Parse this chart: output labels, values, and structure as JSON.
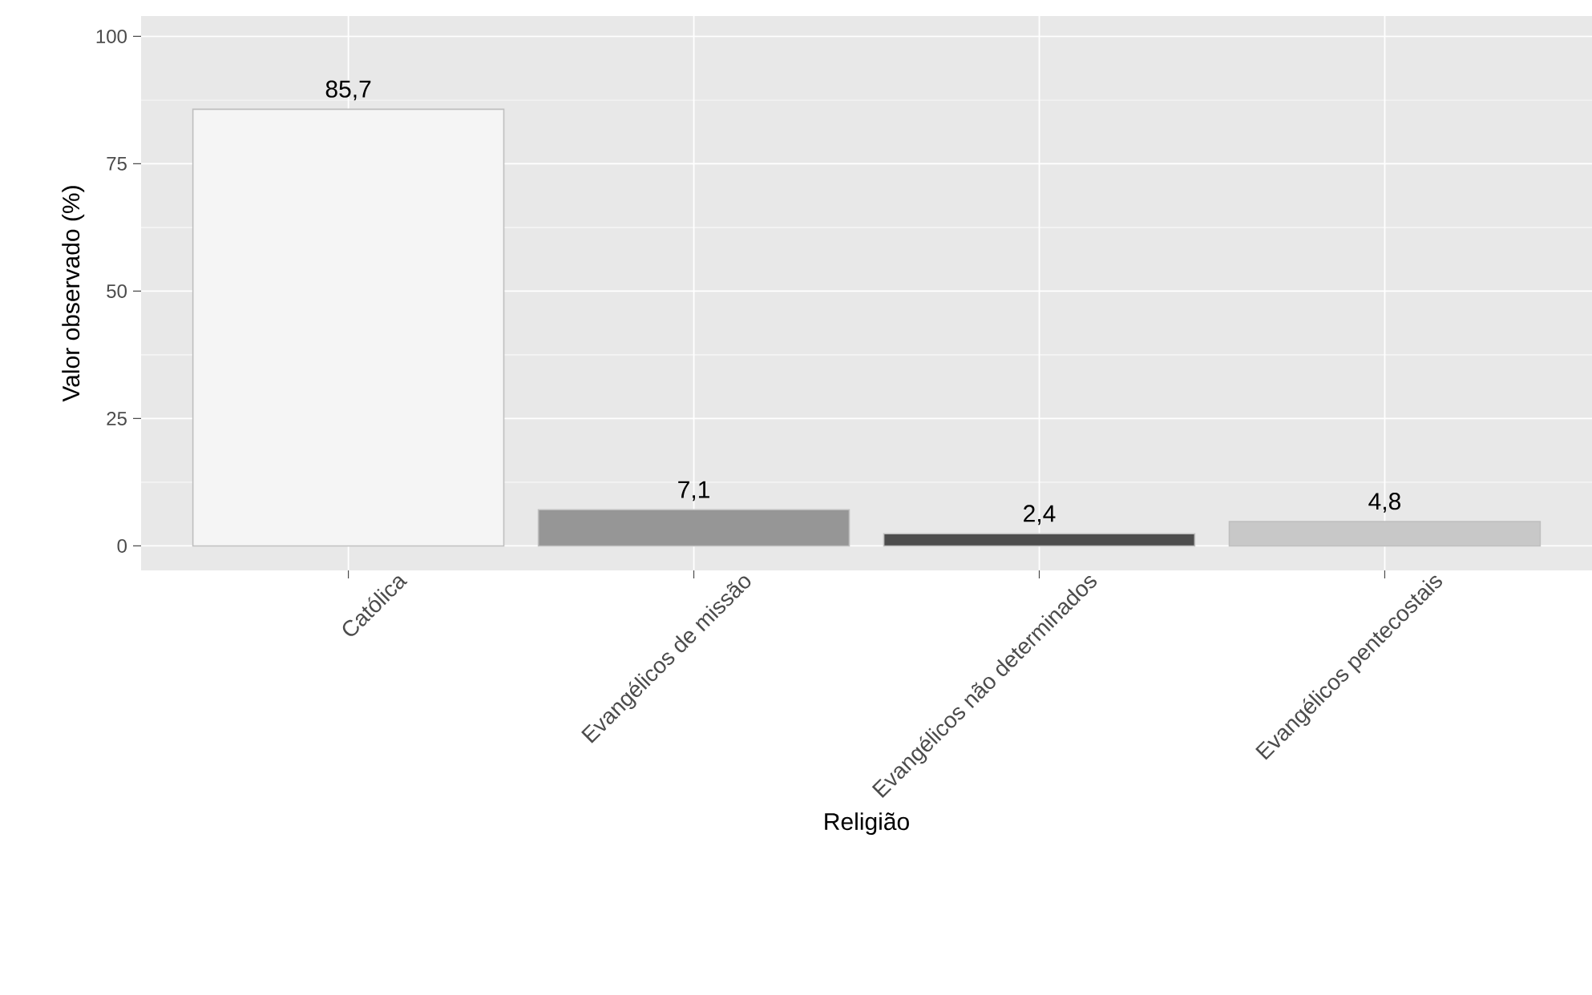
{
  "chart_data": {
    "type": "bar",
    "xlabel": "Religião",
    "ylabel": "Valor observado (%)",
    "categories": [
      "Católica",
      "Evangélicos de missão",
      "Evangélicos não determinados",
      "Evangélicos pentecostais"
    ],
    "values": [
      85.7,
      7.1,
      2.4,
      4.8
    ],
    "colors": [
      "#f5f5f5",
      "#969696",
      "#4d4d4d",
      "#c8c8c8"
    ],
    "value_labels": [
      "85,7",
      "7,1",
      "2,4",
      "4,8"
    ],
    "ylim": [
      -4.8,
      104
    ],
    "yticks": [
      0,
      25,
      50,
      75,
      100
    ],
    "grid": true
  }
}
